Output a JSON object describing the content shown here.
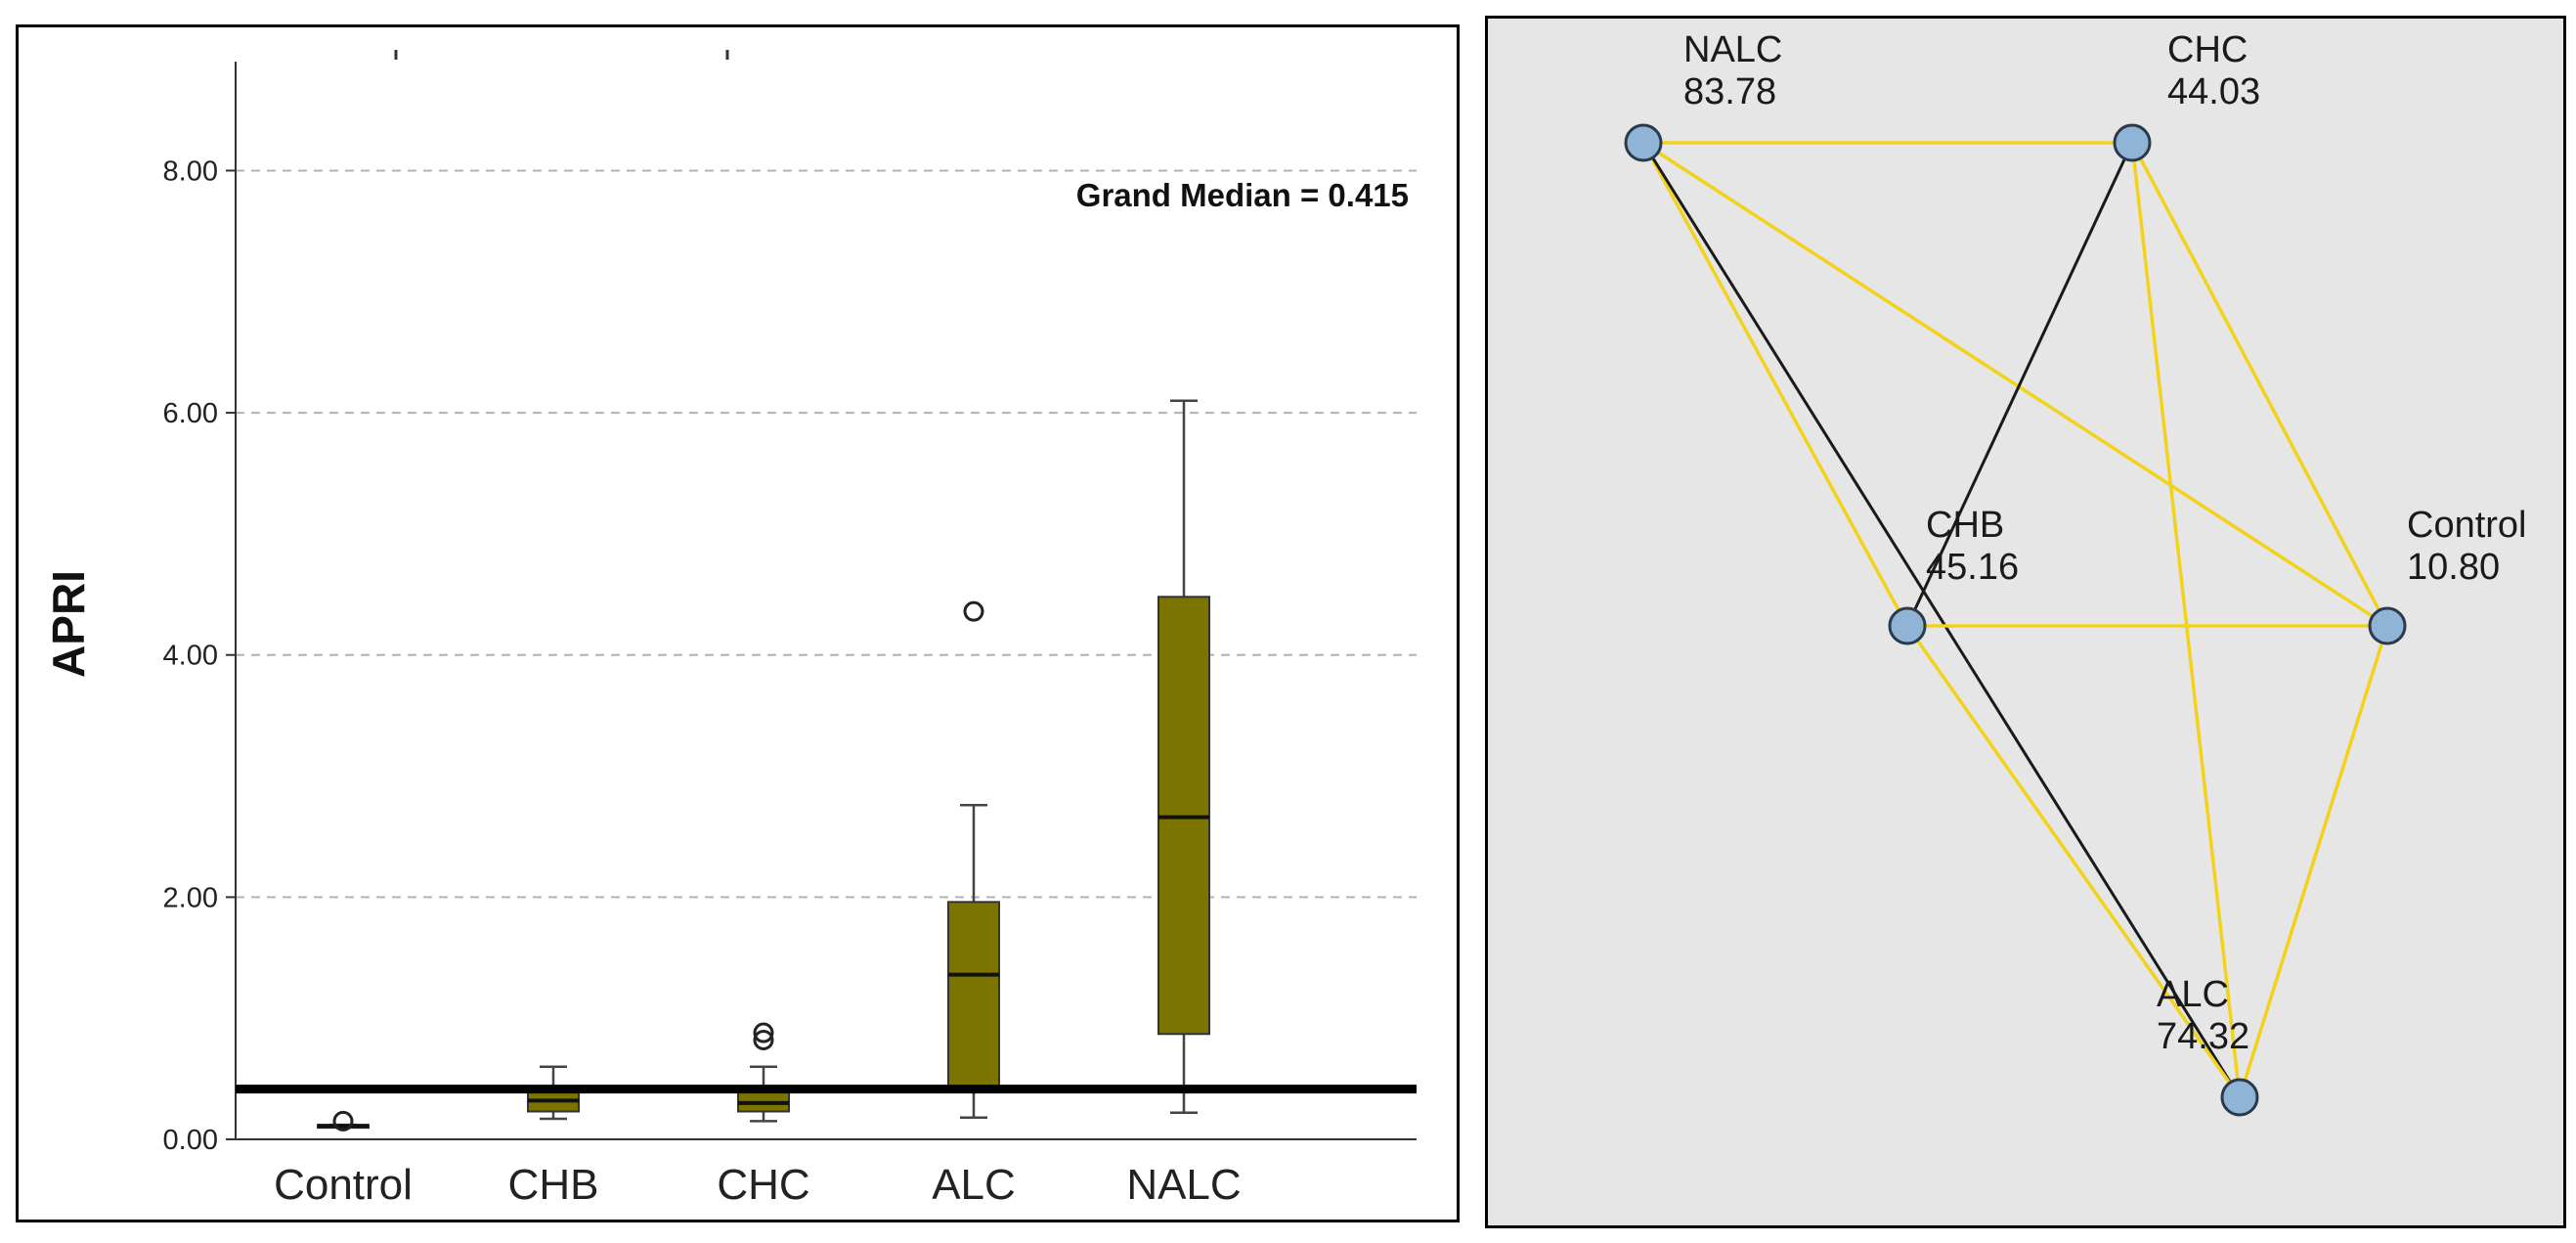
{
  "chart_data": [
    {
      "type": "box",
      "ylabel": "APRI",
      "ylim": [
        0,
        8.9
      ],
      "yticks": [
        {
          "value": 0,
          "label": "0.00"
        },
        {
          "value": 2,
          "label": "2.00"
        },
        {
          "value": 4,
          "label": "4.00"
        },
        {
          "value": 6,
          "label": "6.00"
        },
        {
          "value": 8,
          "label": "8.00"
        }
      ],
      "grid": "dashed horizontal at ticks",
      "categories": [
        "Control",
        "CHB",
        "CHC",
        "ALC",
        "NALC"
      ],
      "boxes": [
        {
          "category": "Control",
          "min": 0.1,
          "q1": 0.1,
          "median": 0.11,
          "q3": 0.12,
          "max": 0.12,
          "outliers": [
            0.15
          ]
        },
        {
          "category": "CHB",
          "min": 0.17,
          "q1": 0.23,
          "median": 0.32,
          "q3": 0.4,
          "max": 0.6,
          "outliers": []
        },
        {
          "category": "CHC",
          "min": 0.15,
          "q1": 0.23,
          "median": 0.3,
          "q3": 0.4,
          "max": 0.6,
          "outliers": [
            0.82,
            0.88
          ]
        },
        {
          "category": "ALC",
          "min": 0.18,
          "q1": 0.4,
          "median": 1.36,
          "q3": 1.96,
          "max": 2.76,
          "outliers": [
            4.36
          ]
        },
        {
          "category": "NALC",
          "min": 0.22,
          "q1": 0.87,
          "median": 2.66,
          "q3": 4.48,
          "max": 6.1,
          "outliers": []
        }
      ],
      "grand_median": {
        "value": 0.415,
        "label": "Grand Median = 0.415"
      },
      "colors": {
        "box_fill": "#7b7400",
        "grand_median_line": "#000000",
        "grid": "#b3b3b3"
      }
    },
    {
      "type": "network",
      "nodes": [
        {
          "id": "NALC",
          "name": "NALC",
          "value": "83.78"
        },
        {
          "id": "CHC",
          "name": "CHC",
          "value": "44.03"
        },
        {
          "id": "CHB",
          "name": "CHB",
          "value": "45.16"
        },
        {
          "id": "Control",
          "name": "Control",
          "value": "10.80"
        },
        {
          "id": "ALC",
          "name": "ALC",
          "value": "74.32"
        }
      ],
      "edges": [
        {
          "source": "NALC",
          "target": "CHC",
          "color": "yellow"
        },
        {
          "source": "NALC",
          "target": "Control",
          "color": "yellow"
        },
        {
          "source": "NALC",
          "target": "CHB",
          "color": "yellow"
        },
        {
          "source": "NALC",
          "target": "ALC",
          "color": "black"
        },
        {
          "source": "CHC",
          "target": "CHB",
          "color": "black"
        },
        {
          "source": "CHC",
          "target": "Control",
          "color": "yellow"
        },
        {
          "source": "CHC",
          "target": "ALC",
          "color": "yellow"
        },
        {
          "source": "CHB",
          "target": "Control",
          "color": "yellow"
        },
        {
          "source": "CHB",
          "target": "ALC",
          "color": "yellow"
        },
        {
          "source": "Control",
          "target": "ALC",
          "color": "yellow"
        }
      ],
      "colors": {
        "background": "#e6e6e6",
        "node_fill": "#8fb4d6",
        "node_stroke": "#2b3a4a",
        "yellow_edge": "#f2d21b",
        "black_edge": "#1a1a1a"
      }
    }
  ]
}
